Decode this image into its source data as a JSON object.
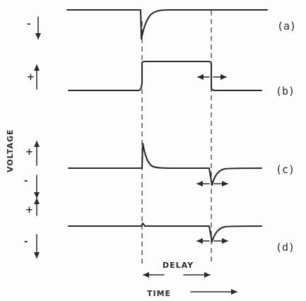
{
  "traces": [
    {
      "label": "(a)",
      "polarity": "-"
    },
    {
      "label": "(b)",
      "polarity": "+"
    },
    {
      "label": "(c)",
      "polarity_top": "+",
      "polarity_bottom": "-"
    },
    {
      "label": "(d)",
      "polarity_top": "+",
      "polarity_bottom": "-"
    }
  ],
  "axis": {
    "y_label": "VOLTAGE",
    "x_label": "TIME"
  },
  "annotations": {
    "delay": "DELAY"
  }
}
